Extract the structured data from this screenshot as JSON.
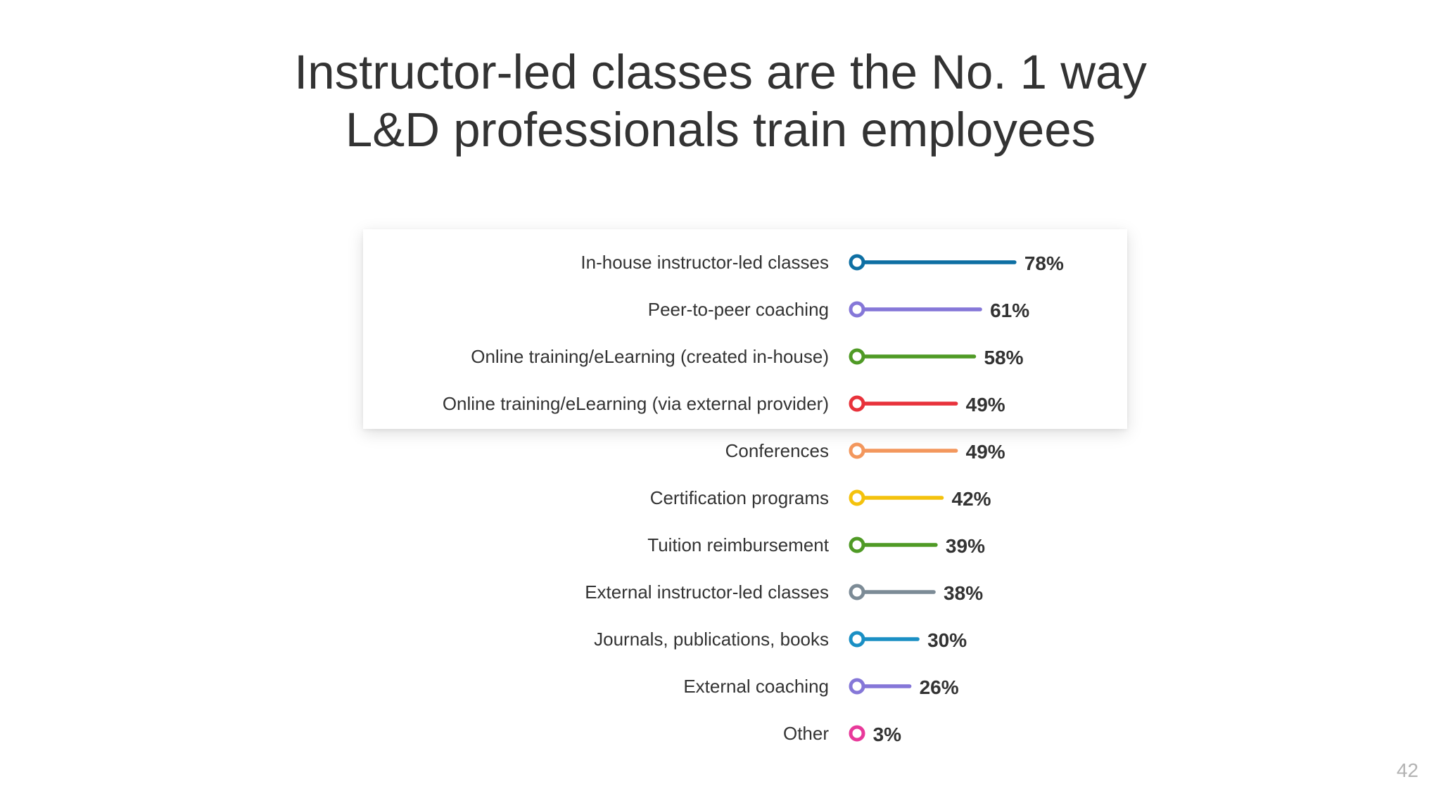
{
  "slide": {
    "title_line1": "Instructor-led classes are the No. 1 way",
    "title_line2": "L&D professionals train employees",
    "page_number": "42"
  },
  "chart_data": {
    "type": "bar",
    "style": "lollipop-horizontal",
    "categories": [
      "In-house instructor-led classes",
      "Peer-to-peer coaching",
      "Online training/eLearning (created in-house)",
      "Online training/eLearning (via external provider)",
      "Conferences",
      "Certification programs",
      "Tuition reimbursement",
      "External instructor-led classes",
      "Journals, publications, books",
      "External coaching",
      "Other"
    ],
    "values": [
      78,
      61,
      58,
      49,
      49,
      42,
      39,
      38,
      30,
      26,
      3
    ],
    "value_labels": [
      "78%",
      "61%",
      "58%",
      "49%",
      "49%",
      "42%",
      "39%",
      "38%",
      "30%",
      "26%",
      "3%"
    ],
    "colors": [
      "#0e6fa3",
      "#8577d8",
      "#4f9a25",
      "#e8323b",
      "#f3975d",
      "#f4c20d",
      "#4f9a25",
      "#7c8b96",
      "#1a8fc4",
      "#8577d8",
      "#e8399a"
    ],
    "highlighted_rows": [
      0,
      1,
      2,
      3
    ],
    "xlim": [
      0,
      100
    ],
    "legend": "none",
    "grid": false
  }
}
